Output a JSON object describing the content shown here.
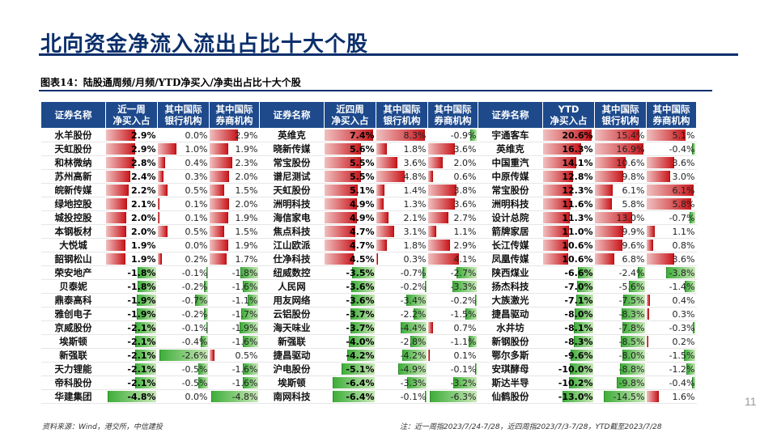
{
  "page": {
    "title": "北向资金净流入流出占比十大个股",
    "subtitle": "图表14：陆股通周频/月频/YTD净买入/净卖出占比十大个股",
    "page_number": "11",
    "source": "资料来源：Wind，港交所，中信建投",
    "note": "注：近一周指2023/7/24-7/28，近四周指2023/7/3-7/28，YTD截至2023/7/28"
  },
  "table": {
    "headers": [
      [
        "证券名称"
      ],
      [
        "近一周",
        "净买入占"
      ],
      [
        "其中国际",
        "银行机构"
      ],
      [
        "其中国际",
        "券商机构"
      ],
      [
        "证券名称"
      ],
      [
        "近四周",
        "净买入占"
      ],
      [
        "其中国际",
        "银行机构"
      ],
      [
        "其中国际",
        "券商机构"
      ],
      [
        "证券名称"
      ],
      [
        "YTD",
        "净买入占"
      ],
      [
        "其中国际",
        "银行机构"
      ],
      [
        "其中国际",
        "券商机构"
      ]
    ],
    "rows": [
      [
        "水羊股份",
        "2.9%",
        "0.0%",
        "2.9%",
        "英维克",
        "7.4%",
        "8.3%",
        "-0.9%",
        "宇通客车",
        "20.6%",
        "15.4%",
        "5.1%"
      ],
      [
        "天虹股份",
        "2.9%",
        "1.0%",
        "1.9%",
        "晓新传媒",
        "5.6%",
        "1.8%",
        "3.6%",
        "英维克",
        "16.3%",
        "16.9%",
        "-0.4%"
      ],
      [
        "和林微纳",
        "2.8%",
        "0.4%",
        "2.3%",
        "常宝股份",
        "5.5%",
        "3.6%",
        "2.0%",
        "中国重汽",
        "14.1%",
        "10.6%",
        "3.6%"
      ],
      [
        "苏州高新",
        "2.4%",
        "0.3%",
        "2.0%",
        "谱尼测试",
        "5.5%",
        "4.8%",
        "0.6%",
        "中原传媒",
        "12.8%",
        "9.8%",
        "3.0%"
      ],
      [
        "皖新传媒",
        "2.2%",
        "0.5%",
        "1.5%",
        "天虹股份",
        "5.1%",
        "1.4%",
        "3.8%",
        "常宝股份",
        "12.3%",
        "6.1%",
        "6.1%"
      ],
      [
        "绿地控股",
        "2.1%",
        "0.1%",
        "2.0%",
        "洲明科技",
        "4.9%",
        "1.3%",
        "3.6%",
        "洲明科技",
        "11.6%",
        "5.8%",
        "5.8%"
      ],
      [
        "城投控股",
        "2.0%",
        "0.1%",
        "1.9%",
        "海信家电",
        "4.9%",
        "2.1%",
        "2.7%",
        "设计总院",
        "11.3%",
        "13.0%",
        "-0.7%"
      ],
      [
        "本钢板材",
        "2.0%",
        "0.5%",
        "1.5%",
        "焦点科技",
        "4.7%",
        "3.1%",
        "1.1%",
        "箭牌家居",
        "11.0%",
        "9.9%",
        "1.1%"
      ],
      [
        "大悦城",
        "1.9%",
        "0.0%",
        "1.9%",
        "江山欧派",
        "4.7%",
        "1.8%",
        "2.9%",
        "长江传媒",
        "10.6%",
        "9.6%",
        "0.8%"
      ],
      [
        "韶钢松山",
        "1.9%",
        "0.2%",
        "1.7%",
        "仕净科技",
        "4.5%",
        "0.3%",
        "4.1%",
        "凤凰传媒",
        "10.6%",
        "6.8%",
        "3.6%"
      ],
      [
        "荣安地产",
        "-1.8%",
        "-0.1%",
        "-1.8%",
        "纽威数控",
        "-3.5%",
        "-0.7%",
        "-2.7%",
        "陕西煤业",
        "-6.6%",
        "-2.4%",
        "-3.8%"
      ],
      [
        "贝泰妮",
        "-1.8%",
        "-0.2%",
        "-1.6%",
        "人民网",
        "-3.6%",
        "-0.2%",
        "-3.3%",
        "扬杰科技",
        "-7.0%",
        "-5.6%",
        "-1.4%"
      ],
      [
        "鼎泰高科",
        "-1.9%",
        "-0.7%",
        "-1.1%",
        "用友网络",
        "-3.6%",
        "-3.4%",
        "-0.2%",
        "大族激光",
        "-7.1%",
        "-7.5%",
        "0.4%"
      ],
      [
        "雅创电子",
        "-1.9%",
        "-0.2%",
        "-1.7%",
        "云铝股份",
        "-3.7%",
        "-2.2%",
        "-1.5%",
        "捷昌驱动",
        "-8.0%",
        "-8.3%",
        "0.3%"
      ],
      [
        "京威股份",
        "-2.1%",
        "-0.1%",
        "-1.9%",
        "海天味业",
        "-3.7%",
        "-4.4%",
        "0.7%",
        "水井坊",
        "-8.1%",
        "-7.8%",
        "-0.3%"
      ],
      [
        "埃斯顿",
        "-2.1%",
        "-0.4%",
        "-1.6%",
        "新强联",
        "-4.0%",
        "-2.8%",
        "-1.1%",
        "新钢股份",
        "-8.3%",
        "-8.5%",
        "0.2%"
      ],
      [
        "新强联",
        "-2.1%",
        "-2.6%",
        "0.5%",
        "捷昌驱动",
        "-4.2%",
        "-4.2%",
        "0.1%",
        "鄂尔多斯",
        "-9.6%",
        "-8.0%",
        "-1.5%"
      ],
      [
        "天力锂能",
        "-2.1%",
        "-0.5%",
        "-1.6%",
        "沪电股份",
        "-5.1%",
        "-4.9%",
        "-0.1%",
        "安琪酵母",
        "-10.0%",
        "-8.8%",
        "-1.2%"
      ],
      [
        "帝科股份",
        "-2.1%",
        "-0.5%",
        "-1.6%",
        "埃斯顿",
        "-6.4%",
        "-3.3%",
        "-3.2%",
        "斯达半导",
        "-10.2%",
        "-9.8%",
        "-0.4%"
      ],
      [
        "华建集团",
        "-4.8%",
        "0.0%",
        "-4.8%",
        "南网科技",
        "-6.4%",
        "-0.1%",
        "-6.3%",
        "仙鹤股份",
        "-13.0%",
        "-14.5%",
        "1.6%"
      ]
    ]
  }
}
